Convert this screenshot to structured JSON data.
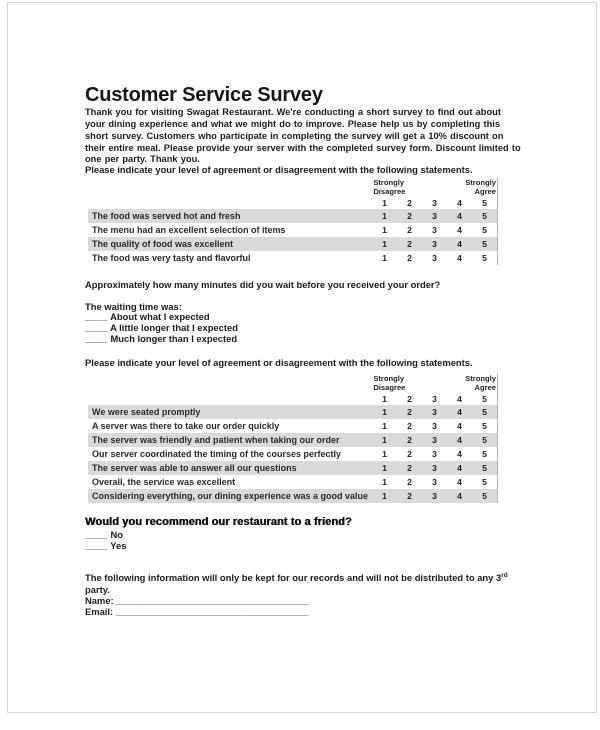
{
  "document": {
    "title": "Customer Service Survey",
    "intro": "Thank you for visiting Swagat Restaurant. We're conducting a short survey to find out about your dining experience and what we might do to improve. Please help us by completing this short survey. Customers who participate in completing the survey will get a 10% discount on their entire meal. Please provide your server with the completed survey form. Discount limited to one per party. Thank you.",
    "agreement_instruction": "Please indicate your level of agreement or disagreement with the following statements.",
    "wait_question": "Approximately how many minutes did you wait before you received your order?",
    "waiting_label": "The waiting time was:",
    "waiting_options": [
      "About what I expected",
      "A little longer that I expected",
      "Much longer than I expected"
    ],
    "recommend_question": "Would you recommend our restaurant to a friend?",
    "recommend_options": [
      "No",
      "Yes"
    ],
    "privacy_note_part1": "The following information will only be kept for our records and will not be distributed to any 3",
    "privacy_note_sup": "rd",
    "privacy_note_part2": " party.",
    "name_label": "Name:",
    "email_label": "Email:",
    "blank_short": "____",
    "blank_long": "___________________________________"
  },
  "scale": {
    "left_label": [
      "Strongly",
      "Disagree"
    ],
    "right_label": [
      "Strongly",
      "Agree"
    ],
    "points": [
      "1",
      "2",
      "3",
      "4",
      "5"
    ]
  },
  "table1": {
    "rows": [
      "The food was served hot and fresh",
      "The menu had an excellent selection of items",
      "The quality of food was excellent",
      "The food was very tasty and flavorful"
    ]
  },
  "table2": {
    "rows": [
      "We were seated promptly",
      "A server was there to take our order quickly",
      "The server was friendly and patient when taking our order",
      "Our server coordinated the timing of the courses perfectly",
      "The server was able to answer all our questions",
      "Overall, the service was excellent",
      "Considering everything, our dining experience was a good value"
    ]
  }
}
